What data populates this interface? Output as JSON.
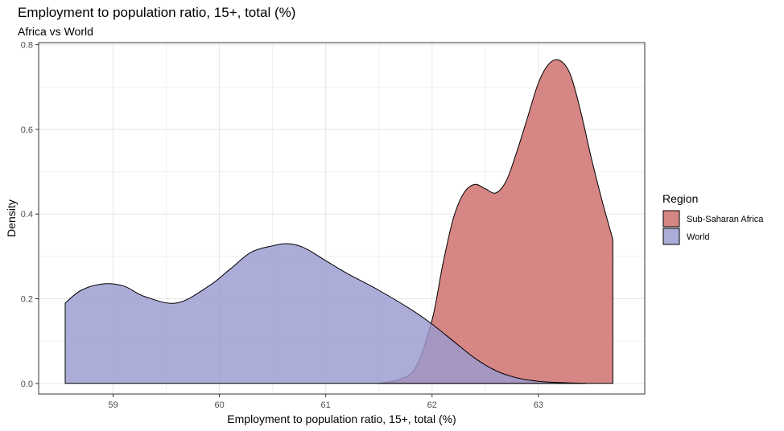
{
  "chart_data": {
    "type": "area",
    "title": "Employment to population ratio, 15+, total (%)",
    "subtitle": "Africa vs World",
    "xlabel": "Employment to population ratio, 15+, total (%)",
    "ylabel": "Density",
    "xlim": [
      58.3,
      64.0
    ],
    "ylim": [
      -0.025,
      0.805
    ],
    "xticks": [
      59,
      60,
      61,
      62,
      63
    ],
    "yticks": [
      0.0,
      0.2,
      0.4,
      0.6,
      0.8
    ],
    "xtick_labels": [
      "59",
      "60",
      "61",
      "62",
      "63"
    ],
    "ytick_labels": [
      "0.0",
      "0.2",
      "0.4",
      "0.6",
      "0.8"
    ],
    "grid": true,
    "legend": {
      "title": "Region",
      "position": "right"
    },
    "series": [
      {
        "name": "Sub-Saharan Africa",
        "color": "#CD6B69",
        "x": [
          61.5,
          61.7,
          61.85,
          62.0,
          62.1,
          62.2,
          62.3,
          62.4,
          62.5,
          62.6,
          62.7,
          62.8,
          62.9,
          63.0,
          63.1,
          63.2,
          63.3,
          63.4,
          63.5,
          63.6,
          63.7
        ],
        "y": [
          0.0,
          0.01,
          0.04,
          0.15,
          0.28,
          0.39,
          0.45,
          0.47,
          0.46,
          0.45,
          0.48,
          0.55,
          0.63,
          0.71,
          0.755,
          0.763,
          0.73,
          0.64,
          0.53,
          0.43,
          0.34
        ]
      },
      {
        "name": "World",
        "color": "#9A9AD0",
        "x": [
          58.55,
          58.7,
          58.9,
          59.1,
          59.3,
          59.6,
          59.9,
          60.1,
          60.3,
          60.5,
          60.65,
          60.8,
          61.0,
          61.2,
          61.5,
          61.8,
          62.0,
          62.2,
          62.4,
          62.6,
          62.8,
          63.0,
          63.2,
          63.45
        ],
        "y": [
          0.19,
          0.22,
          0.235,
          0.23,
          0.205,
          0.19,
          0.23,
          0.27,
          0.31,
          0.325,
          0.33,
          0.32,
          0.29,
          0.26,
          0.22,
          0.175,
          0.14,
          0.1,
          0.06,
          0.03,
          0.013,
          0.005,
          0.002,
          0.0
        ]
      }
    ]
  }
}
